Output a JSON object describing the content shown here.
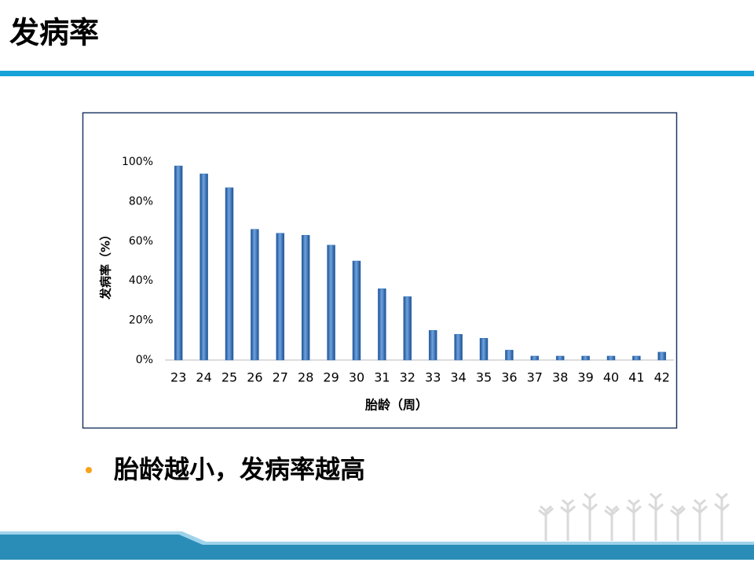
{
  "slide": {
    "title": "发病率",
    "bullet": "胎龄越小，发病率越高"
  },
  "chart_data": {
    "type": "bar",
    "y_label": "发病率（%）",
    "x_label": "胎龄（周）",
    "categories": [
      "23",
      "24",
      "25",
      "26",
      "27",
      "28",
      "29",
      "30",
      "31",
      "32",
      "33",
      "34",
      "35",
      "36",
      "37",
      "38",
      "39",
      "40",
      "41",
      "42"
    ],
    "values": [
      98,
      94,
      87,
      66,
      64,
      63,
      58,
      50,
      36,
      32,
      15,
      13,
      11,
      5,
      2,
      2,
      2,
      2,
      2,
      4
    ],
    "color": "#2f6fb8",
    "ylim": [
      0,
      100
    ],
    "yticks": [
      {
        "value": 0,
        "label": "0%"
      },
      {
        "value": 20,
        "label": "20%"
      },
      {
        "value": 40,
        "label": "40%"
      },
      {
        "value": 60,
        "label": "60%"
      },
      {
        "value": 80,
        "label": "80%"
      },
      {
        "value": 100,
        "label": "100%"
      }
    ],
    "grid": false
  }
}
